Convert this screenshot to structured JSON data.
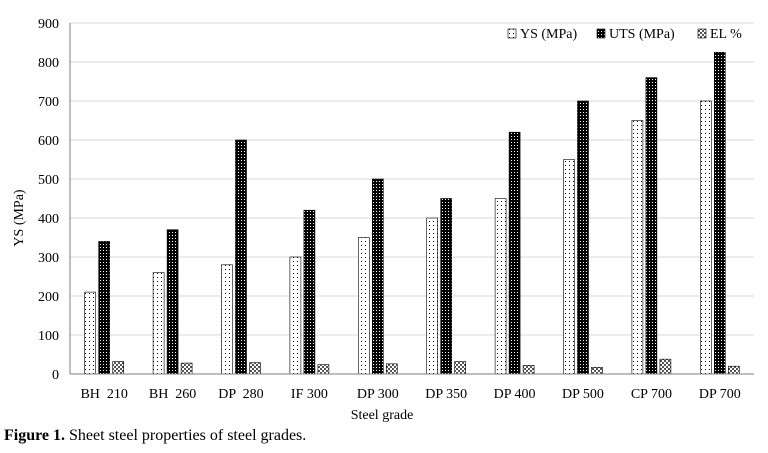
{
  "caption": {
    "label": "Figure 1.",
    "text": " Sheet steel properties of steel grades."
  },
  "chart_data": {
    "type": "bar",
    "title": "",
    "xlabel": "Steel grade",
    "ylabel": "YS (MPa)",
    "ylim": [
      0,
      900
    ],
    "yticks": [
      0,
      100,
      200,
      300,
      400,
      500,
      600,
      700,
      800,
      900
    ],
    "grid": "horizontal",
    "legend_position": "top-right",
    "categories": [
      "BH  210",
      "BH  260",
      "DP  280",
      "IF 300",
      "DP 300",
      "DP 350",
      "DP 400",
      "DP 500",
      "CP 700",
      "DP 700"
    ],
    "series": [
      {
        "name": "YS (MPa)",
        "pattern": "light-dots",
        "values": [
          210,
          260,
          280,
          300,
          350,
          400,
          450,
          550,
          650,
          700
        ]
      },
      {
        "name": "UTS (MPa)",
        "pattern": "dark-dots",
        "values": [
          340,
          370,
          600,
          420,
          500,
          450,
          620,
          700,
          760,
          825
        ]
      },
      {
        "name": "EL %",
        "pattern": "checker",
        "values": [
          32,
          28,
          29,
          24,
          26,
          32,
          22,
          17,
          38,
          20
        ]
      }
    ],
    "colors": {
      "axis": "#7f7f7f",
      "grid": "#d9d9d9",
      "bar_edge": "#000000"
    }
  }
}
